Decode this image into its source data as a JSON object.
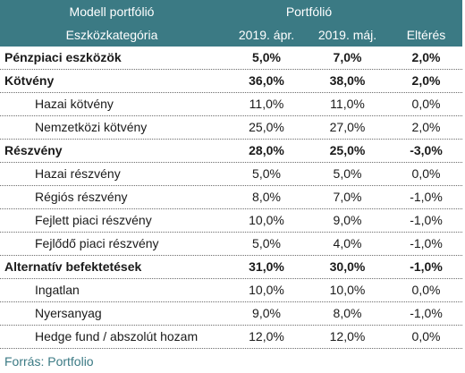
{
  "header": {
    "row1_label": "Modell portfólió",
    "row1_group": "Portfólió",
    "row2_label": "Eszközkategória",
    "col_a": "2019. ápr.",
    "col_b": "2019. máj.",
    "col_c": "Eltérés"
  },
  "rows": [
    {
      "type": "cat",
      "name": "Pénzpiaci eszközök",
      "a": "5,0%",
      "b": "7,0%",
      "c": "2,0%"
    },
    {
      "type": "cat",
      "name": "Kötvény",
      "a": "36,0%",
      "b": "38,0%",
      "c": "2,0%"
    },
    {
      "type": "sub",
      "name": "Hazai kötvény",
      "a": "11,0%",
      "b": "11,0%",
      "c": "0,0%"
    },
    {
      "type": "sub",
      "name": "Nemzetközi kötvény",
      "a": "25,0%",
      "b": "27,0%",
      "c": "2,0%"
    },
    {
      "type": "cat",
      "name": "Részvény",
      "a": "28,0%",
      "b": "25,0%",
      "c": "-3,0%"
    },
    {
      "type": "sub",
      "name": "Hazai részvény",
      "a": "5,0%",
      "b": "5,0%",
      "c": "0,0%"
    },
    {
      "type": "sub",
      "name": "Régiós részvény",
      "a": "8,0%",
      "b": "7,0%",
      "c": "-1,0%"
    },
    {
      "type": "sub",
      "name": "Fejlett piaci részvény",
      "a": "10,0%",
      "b": "9,0%",
      "c": "-1,0%"
    },
    {
      "type": "sub",
      "name": "Fejlődő piaci részvény",
      "a": "5,0%",
      "b": "4,0%",
      "c": "-1,0%"
    },
    {
      "type": "cat",
      "name": "Alternatív befektetések",
      "a": "31,0%",
      "b": "30,0%",
      "c": "-1,0%"
    },
    {
      "type": "sub",
      "name": "Ingatlan",
      "a": "10,0%",
      "b": "10,0%",
      "c": "0,0%"
    },
    {
      "type": "sub",
      "name": "Nyersanyag",
      "a": "9,0%",
      "b": "8,0%",
      "c": "-1,0%"
    },
    {
      "type": "sub",
      "name": "Hedge fund / abszolút hozam",
      "a": "12,0%",
      "b": "12,0%",
      "c": "0,0%"
    }
  ],
  "source": "Forrás: Portfolio",
  "colors": {
    "header_bg": "#3b7a84",
    "source_text": "#3b7a84"
  }
}
